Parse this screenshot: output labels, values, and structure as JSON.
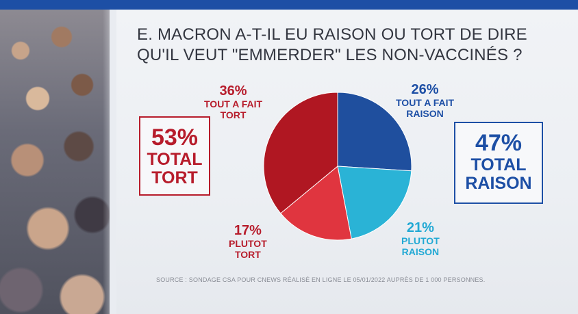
{
  "title": {
    "line1": "E. MACRON A-T-IL EU RAISON OU TORT DE DIRE",
    "line2": "QU'IL VEUT \"EMMERDER\" LES NON-VACCINÉS ?"
  },
  "boxes": {
    "tort": {
      "pct": "53%",
      "line1": "TOTAL",
      "line2": "TORT",
      "color": "#b71c2b"
    },
    "raison": {
      "pct": "47%",
      "line1": "TOTAL",
      "line2": "RAISON",
      "color": "#1d4fa5"
    }
  },
  "slice_labels": {
    "tout_raison": {
      "pct": "26%",
      "line1": "TOUT A FAIT",
      "line2": "RAISON"
    },
    "plutot_raison": {
      "pct": "21%",
      "line1": "PLUTOT",
      "line2": "RAISON"
    },
    "plutot_tort": {
      "pct": "17%",
      "line1": "PLUTOT",
      "line2": "TORT"
    },
    "tout_tort": {
      "pct": "36%",
      "line1": "TOUT A FAIT",
      "line2": "TORT"
    }
  },
  "source": "SOURCE : SONDAGE CSA POUR CNEWS RÉALISÉ EN LIGNE LE 05/01/2022 AUPRÈS DE 1 000 PERSONNES.",
  "chart_data": {
    "type": "pie",
    "categories": [
      "TOUT A FAIT RAISON",
      "PLUTOT RAISON",
      "PLUTOT TORT",
      "TOUT A FAIT TORT"
    ],
    "values": [
      26,
      21,
      17,
      36
    ],
    "colors": [
      "#1f4f9e",
      "#2ab3d6",
      "#e0353f",
      "#b01722"
    ],
    "title": "E. MACRON A-T-IL EU RAISON OU TORT DE DIRE QU'IL VEUT \"EMMERDER\" LES NON-VACCINÉS ?"
  }
}
